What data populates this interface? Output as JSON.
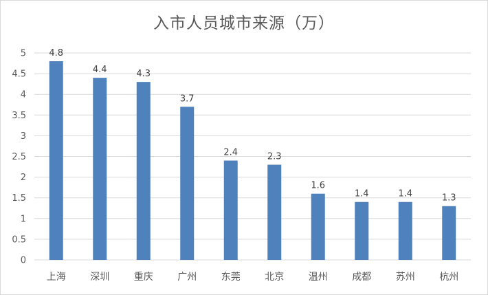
{
  "chart_data": {
    "type": "bar",
    "title": "入市人员城市来源（万）",
    "categories": [
      "上海",
      "深圳",
      "重庆",
      "广州",
      "东莞",
      "北京",
      "温州",
      "成都",
      "苏州",
      "杭州"
    ],
    "values": [
      4.8,
      4.4,
      4.3,
      3.7,
      2.4,
      2.3,
      1.6,
      1.4,
      1.4,
      1.3
    ],
    "data_labels": [
      "4.8",
      "4.4",
      "4.3",
      "3.7",
      "2.4",
      "2.3",
      "1.6",
      "1.4",
      "1.4",
      "1.3"
    ],
    "yticks": [
      "0",
      "0.5",
      "1",
      "1.5",
      "2",
      "2.5",
      "3",
      "3.5",
      "4",
      "4.5",
      "5"
    ],
    "ylim": [
      0,
      5
    ],
    "grid": true,
    "legend": "none",
    "bar_color": "#4f81bd",
    "grid_color": "#d9d9d9"
  }
}
